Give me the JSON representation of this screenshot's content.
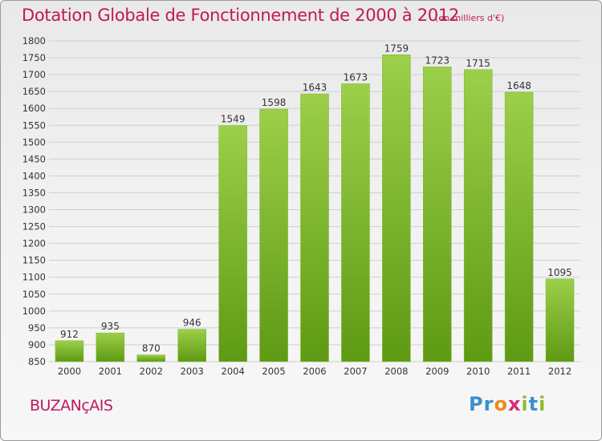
{
  "header": {
    "title": "Dotation Globale de Fonctionnement de 2000 à 2012",
    "unit": "(en milliers d'€)"
  },
  "footer": {
    "commune": "BUZANçAIS",
    "brand_letters": [
      {
        "char": "P",
        "color": "#3a8fd0"
      },
      {
        "char": "r",
        "color": "#3a8fd0"
      },
      {
        "char": "o",
        "color": "#f08a1c"
      },
      {
        "char": "x",
        "color": "#d62b7a"
      },
      {
        "char": "i",
        "color": "#8cbf2e"
      },
      {
        "char": "t",
        "color": "#3a8fd0"
      },
      {
        "char": "i",
        "color": "#8cbf2e"
      }
    ]
  },
  "colors": {
    "accent": "#c0185a",
    "bar_light": "#9ccf4a",
    "bar_dark": "#5e9a14",
    "grid": "#cfcfcf",
    "axis_text": "#333333"
  },
  "chart_data": {
    "type": "bar",
    "categories": [
      "2000",
      "2001",
      "2002",
      "2003",
      "2004",
      "2005",
      "2006",
      "2007",
      "2008",
      "2009",
      "2010",
      "2011",
      "2012"
    ],
    "values": [
      912,
      935,
      870,
      946,
      1549,
      1598,
      1643,
      1673,
      1759,
      1723,
      1715,
      1648,
      1095
    ],
    "ylim": [
      850,
      1800
    ],
    "ytick_step": 50,
    "grid": true,
    "legend": "none"
  }
}
